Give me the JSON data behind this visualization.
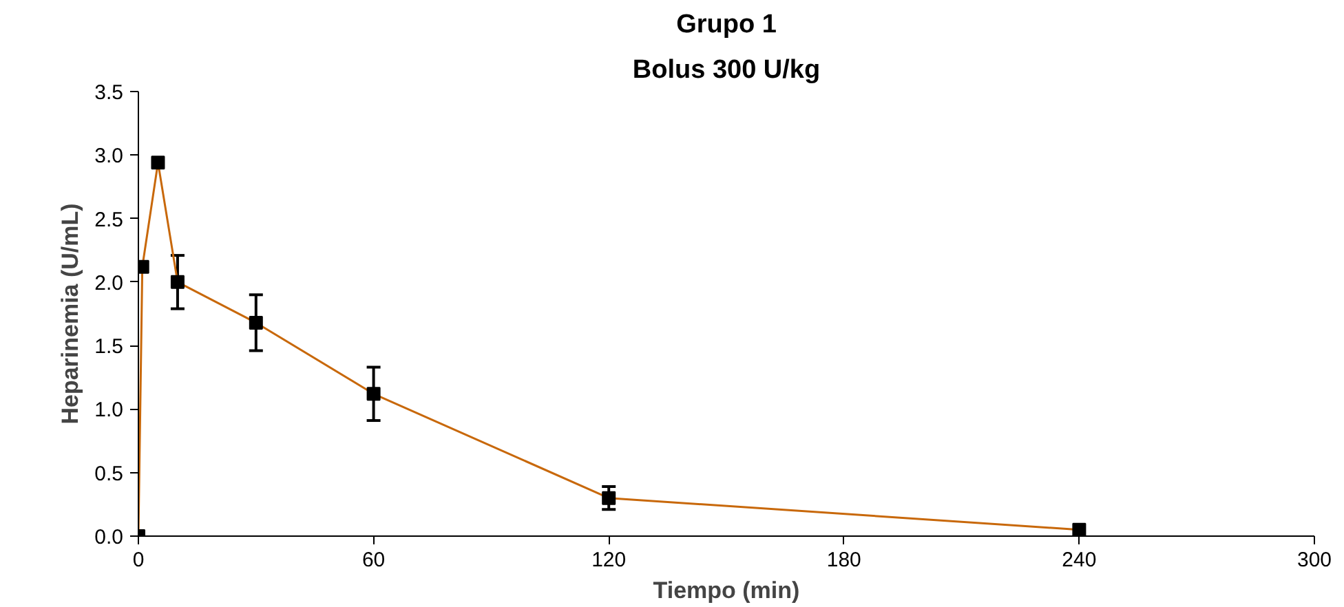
{
  "chart_data": {
    "type": "line",
    "title": "Grupo 1",
    "subtitle": "Bolus 300 U/kg",
    "xlabel": "Tiempo (min)",
    "ylabel": "Heparinemia (U/mL)",
    "series": [
      {
        "color": "#c8680a",
        "x": [
          0,
          1,
          5,
          10,
          30,
          60,
          120,
          240
        ],
        "values": [
          0,
          2.12,
          2.94,
          2.0,
          1.68,
          1.12,
          0.3,
          0.05
        ],
        "errors": [
          null,
          null,
          null,
          0.21,
          0.22,
          0.21,
          0.09,
          null
        ]
      }
    ],
    "xlim": [
      0,
      300
    ],
    "xticks": [
      0,
      60,
      120,
      180,
      240,
      300
    ],
    "ylim": [
      0,
      3.5
    ],
    "yticks": [
      {
        "value": 0,
        "label": "0.0"
      },
      {
        "value": 0.5,
        "label": "0.5"
      },
      {
        "value": 1,
        "label": "1.0"
      },
      {
        "value": 1.5,
        "label": "1.5"
      },
      {
        "value": 2,
        "label": "2.0"
      },
      {
        "value": 2.5,
        "label": "2.5"
      },
      {
        "value": 3,
        "label": "3.0"
      },
      {
        "value": 3.5,
        "label": "3.5"
      }
    ],
    "marker": "square",
    "grid": false
  }
}
